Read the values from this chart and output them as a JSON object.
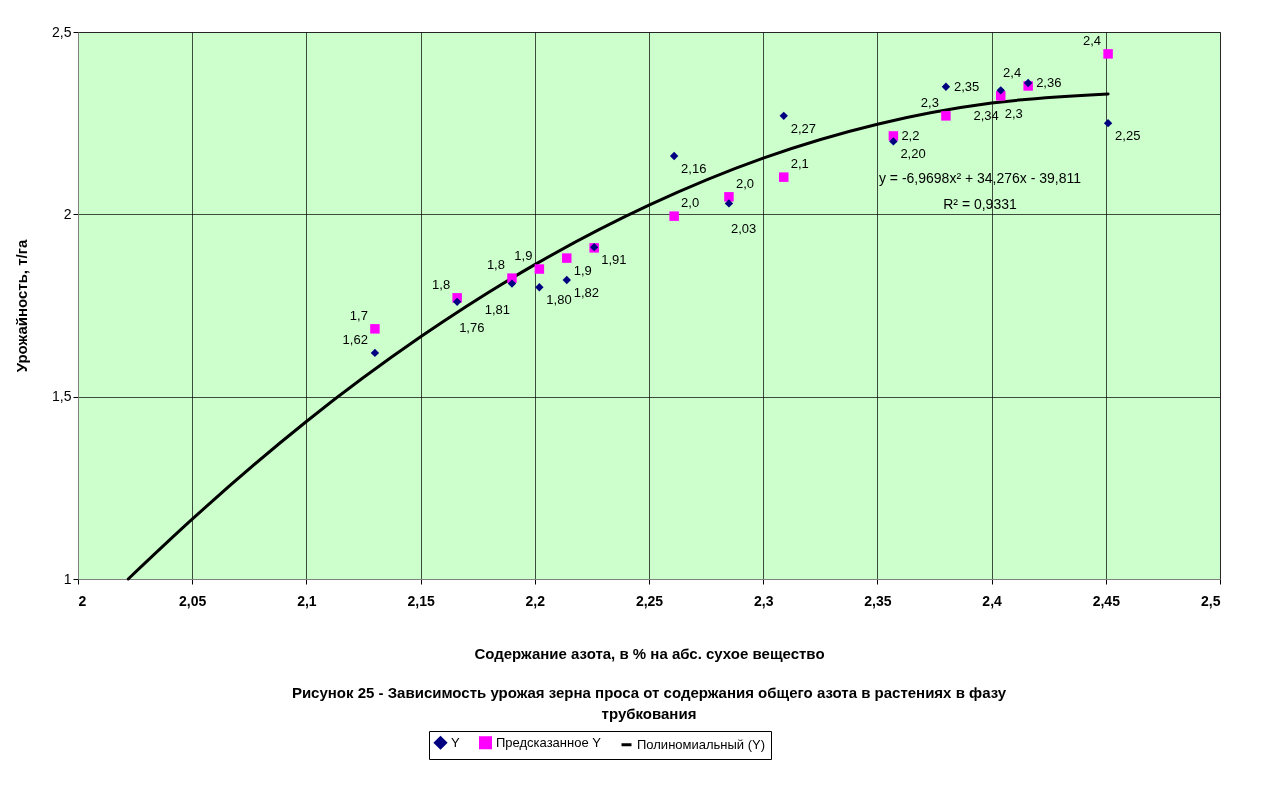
{
  "chart_data": {
    "type": "scatter",
    "xlabel": "Содержание азота, в % на абс. сухое вещество",
    "ylabel": "Урожайность, т/га",
    "xlim": [
      2,
      2.5
    ],
    "xticks": [
      2,
      {
        "value": 2.05,
        "label": "2,05"
      },
      {
        "value": 2.1,
        "label": "2,1"
      },
      {
        "value": 2.15,
        "label": "2,15"
      },
      {
        "value": 2.2,
        "label": "2,2"
      },
      {
        "value": 2.25,
        "label": "2,25"
      },
      {
        "value": 2.3,
        "label": "2,3"
      },
      {
        "value": 2.35,
        "label": "2,35"
      },
      {
        "value": 2.4,
        "label": "2,4"
      },
      {
        "value": 2.45,
        "label": "2,45"
      },
      {
        "value": 2.5,
        "label": "2,5"
      }
    ],
    "ylim": [
      1,
      2.5
    ],
    "yticks": [
      1,
      {
        "value": 1.5,
        "label": "1,5"
      },
      2,
      {
        "value": 2.5,
        "label": "2,5"
      }
    ],
    "grid": true,
    "legend": "bottom",
    "annotations": [
      "y = -6,9698x² + 34,276x - 39,811",
      "R² = 0,9331",
      "Рисунок 25 - Зависимость урожая зерна проса от содержания общего азота в растениях в фазу трубкования"
    ],
    "series": [
      {
        "name": "Y",
        "marker": "diamond",
        "color": "#000080",
        "x": [
          2.13,
          2.166,
          2.19,
          2.202,
          2.214,
          2.226,
          2.261,
          2.285,
          2.309,
          2.357,
          2.38,
          2.404,
          2.416,
          2.451
        ],
        "values": [
          1.62,
          1.76,
          1.81,
          1.8,
          1.82,
          1.91,
          2.16,
          2.03,
          2.27,
          2.2,
          2.35,
          2.34,
          2.36,
          2.25
        ],
        "value_labels": [
          "1,62",
          "1,76",
          "1,81",
          "1,80",
          "1,82",
          "1,91",
          "2,16",
          "2,03",
          "2,27",
          "2,20",
          "2,35",
          "2,34",
          "2,36",
          "2,25"
        ]
      },
      {
        "name": "Предсказанное Y",
        "marker": "square",
        "color": "#ff00ff",
        "x": [
          2.13,
          2.166,
          2.19,
          2.202,
          2.214,
          2.226,
          2.261,
          2.285,
          2.309,
          2.357,
          2.38,
          2.404,
          2.416,
          2.451
        ],
        "values": [
          1.686,
          1.771,
          1.825,
          1.85,
          1.88,
          1.908,
          1.995,
          2.048,
          2.102,
          2.215,
          2.27,
          2.325,
          2.352,
          2.44
        ],
        "value_labels": [
          "1,7",
          "1,8",
          "1,8",
          "1,9",
          "1,9",
          null,
          "2,0",
          "2,0",
          "2,1",
          "2,2",
          "2,3",
          "2,3",
          "2,4",
          "2,4"
        ]
      },
      {
        "name": "Полиномиальный (Y)",
        "type": "line",
        "marker": "none",
        "line_style": "solid",
        "color": "#000000",
        "x": [
          2.022,
          2.05,
          2.1,
          2.15,
          2.2,
          2.25,
          2.3,
          2.35,
          2.4,
          2.451
        ],
        "values": [
          1.0,
          1.164,
          1.432,
          1.664,
          1.862,
          2.025,
          2.154,
          2.247,
          2.305,
          2.33
        ]
      }
    ]
  }
}
